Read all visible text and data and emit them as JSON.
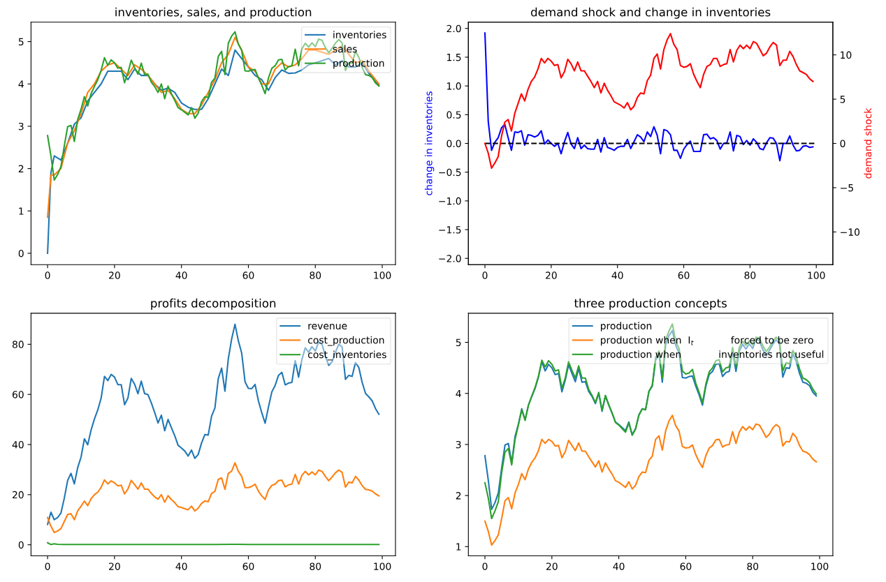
{
  "chart_data": [
    {
      "type": "line",
      "title": "inventories, sales, and production",
      "legend": "top right",
      "grid": false,
      "xlim": [
        -4.95,
        103.95
      ],
      "xticks": [
        0,
        20,
        40,
        60,
        80,
        100
      ],
      "ylim": [
        -0.27,
        5.46
      ],
      "yticks": [
        0,
        1,
        2,
        3,
        4,
        5
      ],
      "series": [
        {
          "name": "inventories",
          "color": "#1f77b4",
          "x": [
            0,
            1,
            2,
            4,
            6,
            8,
            10,
            12,
            14,
            16,
            18,
            20,
            22,
            24,
            26,
            28,
            30,
            32,
            34,
            36,
            38,
            40,
            42,
            44,
            46,
            48,
            50,
            52,
            54,
            56,
            58,
            60,
            62,
            64,
            66,
            68,
            70,
            72,
            74,
            76,
            78,
            80,
            82,
            84,
            86,
            88,
            90,
            92,
            94,
            96,
            98,
            99
          ],
          "values": [
            0,
            1.9,
            2.3,
            2.2,
            2.6,
            3.05,
            3.2,
            3.6,
            3.8,
            4.0,
            4.3,
            4.3,
            4.3,
            4.1,
            4.35,
            4.2,
            4.2,
            4.0,
            3.85,
            3.9,
            3.8,
            3.55,
            3.45,
            3.4,
            3.4,
            3.65,
            4.0,
            4.35,
            4.2,
            4.8,
            4.6,
            4.4,
            4.2,
            4.1,
            3.85,
            4.15,
            4.33,
            4.25,
            4.26,
            4.33,
            4.45,
            4.5,
            4.55,
            4.6,
            4.45,
            4.55,
            4.4,
            4.4,
            4.5,
            4.25,
            4.05,
            3.97
          ]
        },
        {
          "name": "sales",
          "color": "#ff7f0e",
          "x": [
            0,
            1,
            2,
            4,
            6,
            8,
            10,
            12,
            14,
            16,
            18,
            20,
            22,
            24,
            26,
            28,
            30,
            32,
            34,
            36,
            38,
            40,
            42,
            44,
            46,
            48,
            50,
            52,
            54,
            56,
            58,
            60,
            62,
            64,
            66,
            68,
            70,
            72,
            74,
            76,
            78,
            80,
            82,
            84,
            86,
            88,
            90,
            92,
            94,
            96,
            98,
            99
          ],
          "values": [
            0.85,
            1.85,
            1.85,
            2.0,
            2.6,
            2.9,
            3.3,
            3.8,
            4.0,
            4.3,
            4.45,
            4.5,
            4.35,
            4.2,
            4.45,
            4.35,
            4.2,
            4.0,
            3.8,
            3.85,
            3.65,
            3.4,
            3.3,
            3.3,
            3.5,
            3.8,
            4.1,
            4.5,
            4.7,
            5.1,
            4.8,
            4.4,
            4.3,
            4.0,
            4.0,
            4.35,
            4.5,
            4.4,
            4.45,
            4.6,
            4.8,
            4.8,
            4.75,
            4.7,
            4.8,
            4.9,
            4.7,
            4.5,
            4.55,
            4.3,
            4.1,
            4.0
          ]
        },
        {
          "name": "production",
          "color": "#2ca02c",
          "x": [
            0,
            1,
            2,
            3,
            4,
            5,
            6,
            7,
            8,
            9,
            10,
            11,
            12,
            13,
            14,
            15,
            16,
            17,
            18,
            19,
            20,
            21,
            22,
            23,
            24,
            25,
            26,
            27,
            28,
            29,
            30,
            31,
            32,
            33,
            34,
            35,
            36,
            37,
            38,
            39,
            40,
            41,
            42,
            43,
            44,
            45,
            46,
            47,
            48,
            49,
            50,
            51,
            52,
            53,
            54,
            55,
            56,
            57,
            58,
            59,
            60,
            61,
            62,
            63,
            64,
            65,
            66,
            67,
            68,
            69,
            70,
            71,
            72,
            73,
            74,
            75,
            76,
            77,
            78,
            79,
            80,
            81,
            82,
            83,
            84,
            85,
            86,
            87,
            88,
            89,
            90,
            91,
            92,
            93,
            94,
            95,
            96,
            97,
            98,
            99
          ],
          "values": [
            2.78,
            2.3,
            1.73,
            1.86,
            2.05,
            2.54,
            2.99,
            3.02,
            2.64,
            3.16,
            3.4,
            3.7,
            3.48,
            3.77,
            3.94,
            4.1,
            4.32,
            4.62,
            4.44,
            4.57,
            4.5,
            4.37,
            4.39,
            4.03,
            4.26,
            4.56,
            4.39,
            4.23,
            4.49,
            4.22,
            4.23,
            4.04,
            3.94,
            3.8,
            4.0,
            3.65,
            3.95,
            3.77,
            3.61,
            3.44,
            3.39,
            3.33,
            3.27,
            3.44,
            3.19,
            3.31,
            3.58,
            3.7,
            3.68,
            4.04,
            4.14,
            4.65,
            4.77,
            4.22,
            4.96,
            5.13,
            5.23,
            4.94,
            4.79,
            4.31,
            4.3,
            4.33,
            4.34,
            4.14,
            3.97,
            3.77,
            4.14,
            4.37,
            4.43,
            4.57,
            4.58,
            4.33,
            4.41,
            4.43,
            4.82,
            4.43,
            4.83,
            4.96,
            4.87,
            4.97,
            4.88,
            5.06,
            5.03,
            4.86,
            4.74,
            4.84,
            4.96,
            5.05,
            4.97,
            4.32,
            4.5,
            4.49,
            4.77,
            4.63,
            4.39,
            4.22,
            4.2,
            4.15,
            4.02,
            3.95
          ]
        }
      ]
    },
    {
      "type": "line",
      "title": "demand shock and change in inventories",
      "ylabel": "change in inventories",
      "y2label": "demand shock",
      "legend": false,
      "grid": false,
      "xlim": [
        -5,
        105
      ],
      "xticks": [
        0,
        20,
        40,
        60,
        80,
        100
      ],
      "ylim": [
        -2.11,
        2.11
      ],
      "yticks": [
        {
          "value": -2,
          "label": "−2.0"
        },
        {
          "value": -1.5,
          "label": "−1.5"
        },
        {
          "value": -1,
          "label": "−1.0"
        },
        {
          "value": -0.5,
          "label": "−0.5"
        },
        {
          "value": 0,
          "label": "0.0"
        },
        {
          "value": 0.5,
          "label": "0.5"
        },
        {
          "value": 1,
          "label": "1.0"
        },
        {
          "value": 1.5,
          "label": "1.5"
        },
        {
          "value": 2,
          "label": "2.0"
        }
      ],
      "y2lim": [
        -13.7,
        13.7
      ],
      "y2ticks": [
        {
          "value": -10,
          "label": "−10"
        },
        {
          "value": -5,
          "label": "−5"
        },
        0,
        5,
        10
      ],
      "series": [
        {
          "color": "#0000ff",
          "axis": "y",
          "x": [
            0,
            1,
            2,
            3,
            4,
            5,
            6,
            7,
            8,
            9,
            10,
            11,
            12,
            13,
            14,
            15,
            16,
            17,
            18,
            19,
            20,
            21,
            22,
            23,
            24,
            25,
            26,
            27,
            28,
            29,
            30,
            31,
            32,
            33,
            34,
            35,
            36,
            37,
            38,
            39,
            40,
            41,
            42,
            43,
            44,
            45,
            46,
            47,
            48,
            49,
            50,
            51,
            52,
            53,
            54,
            55,
            56,
            57,
            58,
            59,
            60,
            61,
            62,
            63,
            64,
            65,
            66,
            67,
            68,
            69,
            70,
            71,
            72,
            73,
            74,
            75,
            76,
            77,
            78,
            79,
            80,
            81,
            82,
            83,
            84,
            85,
            86,
            87,
            88,
            89,
            90,
            91,
            92,
            93,
            94,
            95,
            96,
            97,
            98,
            99
          ],
          "values": [
            1.92,
            0.38,
            -0.12,
            0.02,
            0.1,
            0.27,
            0.33,
            0.1,
            -0.12,
            0.2,
            0.19,
            0.22,
            -0.03,
            0.15,
            0.14,
            0.11,
            0.14,
            0.22,
            -0.01,
            0.06,
            0.0,
            -0.05,
            0.0,
            -0.18,
            0.03,
            0.19,
            -0.01,
            -0.09,
            0.1,
            -0.09,
            -0.03,
            -0.09,
            -0.1,
            -0.1,
            0.07,
            -0.15,
            0.1,
            -0.07,
            -0.09,
            -0.12,
            -0.07,
            -0.05,
            -0.05,
            0.07,
            -0.09,
            0.03,
            0.15,
            0.11,
            0.03,
            0.2,
            0.12,
            0.29,
            0.14,
            -0.18,
            0.24,
            0.22,
            0.15,
            -0.12,
            -0.12,
            -0.26,
            -0.1,
            -0.02,
            0.04,
            -0.14,
            -0.14,
            -0.14,
            0.15,
            0.16,
            0.08,
            0.1,
            0.05,
            -0.1,
            0.0,
            0.01,
            0.2,
            -0.13,
            0.14,
            0.12,
            -0.02,
            0.05,
            -0.03,
            0.08,
            0.02,
            -0.09,
            -0.11,
            0.01,
            0.1,
            0.09,
            0.0,
            -0.3,
            0.0,
            0.0,
            0.13,
            -0.03,
            -0.13,
            -0.12,
            -0.05,
            -0.04,
            -0.07,
            -0.06
          ]
        },
        {
          "color": "#ff0000",
          "axis": "y2",
          "x": [
            0,
            1,
            2,
            3,
            4,
            5,
            6,
            7,
            8,
            9,
            10,
            11,
            12,
            13,
            14,
            15,
            16,
            17,
            18,
            19,
            20,
            21,
            22,
            23,
            24,
            25,
            26,
            27,
            28,
            29,
            30,
            31,
            32,
            33,
            34,
            35,
            36,
            37,
            38,
            39,
            40,
            41,
            42,
            43,
            44,
            45,
            46,
            47,
            48,
            49,
            50,
            51,
            52,
            53,
            54,
            55,
            56,
            57,
            58,
            59,
            60,
            61,
            62,
            63,
            64,
            65,
            66,
            67,
            68,
            69,
            70,
            71,
            72,
            73,
            74,
            75,
            76,
            77,
            78,
            79,
            80,
            81,
            82,
            83,
            84,
            85,
            86,
            87,
            88,
            89,
            90,
            91,
            92,
            93,
            94,
            95,
            96,
            97,
            98,
            99
          ],
          "values": [
            0,
            -1.1,
            -2.8,
            -2.2,
            -1.5,
            0.8,
            2.4,
            2.7,
            1.4,
            3.4,
            4.5,
            5.6,
            4.8,
            6.1,
            7.0,
            7.5,
            8.4,
            9.6,
            9.1,
            9.6,
            9.3,
            8.8,
            8.9,
            7.4,
            8.1,
            9.5,
            9.0,
            8.2,
            9.2,
            8.2,
            8.2,
            7.6,
            7.0,
            6.3,
            7.0,
            5.7,
            6.8,
            6.0,
            5.4,
            4.7,
            4.5,
            4.3,
            4.0,
            4.6,
            3.8,
            4.2,
            5.2,
            5.7,
            5.6,
            7.1,
            7.7,
            9.6,
            10.1,
            8.4,
            10.6,
            11.7,
            12.4,
            11.2,
            10.6,
            8.8,
            8.6,
            8.7,
            9.0,
            7.8,
            7.0,
            6.3,
            7.8,
            8.7,
            8.9,
            9.6,
            9.6,
            8.7,
            8.9,
            9.0,
            10.6,
            9.2,
            10.5,
            11.1,
            10.7,
            11.1,
            10.7,
            11.5,
            11.3,
            10.6,
            9.9,
            10.2,
            10.9,
            11.4,
            11.1,
            8.8,
            9.4,
            9.4,
            10.4,
            9.8,
            8.9,
            8.2,
            8.0,
            7.8,
            7.3,
            7.0
          ]
        },
        {
          "color": "#000000",
          "axis": "y",
          "line_style": "dashed",
          "x": [
            0,
            100
          ],
          "values": [
            0,
            0
          ]
        }
      ]
    },
    {
      "type": "line",
      "title": "profits decomposition",
      "legend": "top right",
      "grid": false,
      "xlim": [
        -4.95,
        103.95
      ],
      "xticks": [
        0,
        20,
        40,
        60,
        80,
        100
      ],
      "ylim": [
        -4.4,
        92.4
      ],
      "yticks": [
        0,
        20,
        40,
        60,
        80
      ],
      "series": [
        {
          "name": "revenue",
          "color": "#1f77b4",
          "x": [
            0,
            1,
            2,
            3,
            4,
            5,
            6,
            7,
            8,
            9,
            10,
            11,
            12,
            13,
            14,
            15,
            16,
            17,
            18,
            19,
            20,
            21,
            22,
            23,
            24,
            25,
            26,
            27,
            28,
            29,
            30,
            31,
            32,
            33,
            34,
            35,
            36,
            37,
            38,
            39,
            40,
            41,
            42,
            43,
            44,
            45,
            46,
            47,
            48,
            49,
            50,
            51,
            52,
            53,
            54,
            55,
            56,
            57,
            58,
            59,
            60,
            61,
            62,
            63,
            64,
            65,
            66,
            67,
            68,
            69,
            70,
            71,
            72,
            73,
            74,
            75,
            76,
            77,
            78,
            79,
            80,
            81,
            82,
            83,
            84,
            85,
            86,
            87,
            88,
            89,
            90,
            91,
            92,
            93,
            94,
            95,
            96,
            97,
            98,
            99
          ],
          "values": [
            8.1,
            13,
            10,
            10.9,
            12.7,
            18.6,
            25.7,
            28.5,
            24.3,
            30.8,
            35,
            42.3,
            39.9,
            45.8,
            50.2,
            53.8,
            58.5,
            67.2,
            65.5,
            68,
            66.9,
            63.9,
            63.9,
            55.9,
            58.5,
            66.4,
            64.1,
            60.3,
            65.3,
            60.3,
            59.9,
            56.6,
            52.8,
            48.6,
            51.7,
            45.5,
            50,
            46.7,
            43.5,
            39.7,
            38.6,
            37.4,
            35.4,
            37.8,
            34.5,
            36,
            40.6,
            44,
            43.8,
            51.3,
            54.6,
            66.3,
            70.5,
            61.3,
            74.2,
            82.1,
            88,
            81.4,
            76.5,
            65,
            62.4,
            62.3,
            64,
            57.4,
            52.7,
            48.5,
            55,
            61,
            63.6,
            67.6,
            68.8,
            63.8,
            64.5,
            64.8,
            73.5,
            66.9,
            74,
            78.6,
            76.8,
            79.1,
            77.3,
            81,
            80,
            75.4,
            71.6,
            73,
            76.8,
            80,
            79,
            66,
            67.6,
            67.2,
            72.7,
            70.7,
            64.8,
            60.4,
            59,
            57.4,
            54.3,
            52.1
          ]
        },
        {
          "name": "cost_production",
          "color": "#ff7f0e",
          "x": [
            0,
            1,
            2,
            3,
            4,
            5,
            6,
            7,
            8,
            9,
            10,
            11,
            12,
            13,
            14,
            15,
            16,
            17,
            18,
            19,
            20,
            21,
            22,
            23,
            24,
            25,
            26,
            27,
            28,
            29,
            30,
            31,
            32,
            33,
            34,
            35,
            36,
            37,
            38,
            39,
            40,
            41,
            42,
            43,
            44,
            45,
            46,
            47,
            48,
            49,
            50,
            51,
            52,
            53,
            54,
            55,
            56,
            57,
            58,
            59,
            60,
            61,
            62,
            63,
            64,
            65,
            66,
            67,
            68,
            69,
            70,
            71,
            72,
            73,
            74,
            75,
            76,
            77,
            78,
            79,
            80,
            81,
            82,
            83,
            84,
            85,
            86,
            87,
            88,
            89,
            90,
            91,
            92,
            93,
            94,
            95,
            96,
            97,
            98,
            99
          ],
          "values": [
            10.9,
            7.4,
            4.9,
            5.5,
            6.5,
            9.3,
            12.1,
            12.4,
            10,
            13.5,
            15.4,
            17.4,
            15.6,
            18.4,
            20,
            21,
            22.9,
            25.9,
            24.3,
            25.5,
            24.7,
            23.5,
            23.8,
            20.3,
            22.2,
            25.7,
            24,
            22.2,
            24.7,
            22.2,
            22.2,
            20.5,
            19.1,
            18.2,
            20,
            17,
            19.6,
            18,
            16.8,
            15.2,
            14.9,
            14.4,
            14,
            15.4,
            13.5,
            14.6,
            16.5,
            17.5,
            17.2,
            20.5,
            21.3,
            26.1,
            26.7,
            22.1,
            28.5,
            29.4,
            32.7,
            29.3,
            27.3,
            22.8,
            22.8,
            23.3,
            24.2,
            21.4,
            19.5,
            18.1,
            21.9,
            23.7,
            24.2,
            25.6,
            25.8,
            23.1,
            23.9,
            24.2,
            28.1,
            24.2,
            27.7,
            29.3,
            27.9,
            29.1,
            27.9,
            29.8,
            29.3,
            27.3,
            25.6,
            27,
            28.7,
            29.8,
            28.9,
            23,
            25,
            24.7,
            27.3,
            25.8,
            23.6,
            22.1,
            21.9,
            21.4,
            20.3,
            19.5
          ]
        },
        {
          "name": "cost_inventories",
          "color": "#2ca02c",
          "x": [
            0,
            1,
            2,
            3,
            5,
            10,
            20,
            30,
            40,
            50,
            55,
            56,
            57,
            60,
            70,
            80,
            90,
            99
          ],
          "values": [
            0.8,
            0.1,
            0.4,
            0.2,
            0.1,
            0.1,
            0.1,
            0.1,
            0.1,
            0.1,
            0.2,
            0.2,
            0.2,
            0.1,
            0.1,
            0.1,
            0.1,
            0.1
          ]
        }
      ]
    },
    {
      "type": "line",
      "title": "three production concepts",
      "legend": "top right",
      "grid": false,
      "xlim": [
        -4.95,
        103.95
      ],
      "xticks": [
        0,
        20,
        40,
        60,
        80,
        100
      ],
      "ylim": [
        0.82,
        5.57
      ],
      "yticks": [
        1,
        2,
        3,
        4,
        5
      ],
      "series": [
        {
          "name": "production",
          "color": "#1f77b4",
          "x": [
            0,
            1,
            2,
            3,
            4,
            5,
            6,
            7,
            8,
            9,
            10,
            11,
            12,
            13,
            14,
            15,
            16,
            17,
            18,
            19,
            20,
            21,
            22,
            23,
            24,
            25,
            26,
            27,
            28,
            29,
            30,
            31,
            32,
            33,
            34,
            35,
            36,
            37,
            38,
            39,
            40,
            41,
            42,
            43,
            44,
            45,
            46,
            47,
            48,
            49,
            50,
            51,
            52,
            53,
            54,
            55,
            56,
            57,
            58,
            59,
            60,
            61,
            62,
            63,
            64,
            65,
            66,
            67,
            68,
            69,
            70,
            71,
            72,
            73,
            74,
            75,
            76,
            77,
            78,
            79,
            80,
            81,
            82,
            83,
            84,
            85,
            86,
            87,
            88,
            89,
            90,
            91,
            92,
            93,
            94,
            95,
            96,
            97,
            98,
            99
          ],
          "values": [
            2.78,
            2.3,
            1.73,
            1.86,
            2.05,
            2.54,
            2.99,
            3.02,
            2.64,
            3.16,
            3.4,
            3.7,
            3.48,
            3.77,
            3.94,
            4.1,
            4.32,
            4.62,
            4.44,
            4.57,
            4.5,
            4.37,
            4.39,
            4.03,
            4.26,
            4.56,
            4.39,
            4.23,
            4.49,
            4.22,
            4.23,
            4.04,
            3.94,
            3.8,
            4.0,
            3.65,
            3.95,
            3.77,
            3.61,
            3.44,
            3.39,
            3.33,
            3.27,
            3.44,
            3.19,
            3.31,
            3.58,
            3.7,
            3.68,
            4.04,
            4.14,
            4.65,
            4.77,
            4.22,
            4.96,
            5.13,
            5.23,
            4.94,
            4.79,
            4.31,
            4.3,
            4.33,
            4.34,
            4.14,
            3.97,
            3.77,
            4.14,
            4.37,
            4.43,
            4.57,
            4.58,
            4.33,
            4.41,
            4.43,
            4.82,
            4.43,
            4.83,
            4.96,
            4.87,
            4.97,
            4.88,
            5.06,
            5.03,
            4.86,
            4.74,
            4.84,
            4.96,
            5.05,
            4.97,
            4.32,
            4.5,
            4.49,
            4.77,
            4.63,
            4.39,
            4.22,
            4.2,
            4.15,
            4.02,
            3.95
          ]
        },
        {
          "name": "production when  I$_{t}$            forced to be zero",
          "color": "#ff7f0e",
          "x": [
            0,
            1,
            2,
            3,
            4,
            5,
            6,
            7,
            8,
            9,
            10,
            11,
            12,
            13,
            14,
            15,
            16,
            17,
            18,
            19,
            20,
            21,
            22,
            23,
            24,
            25,
            26,
            27,
            28,
            29,
            30,
            31,
            32,
            33,
            34,
            35,
            36,
            37,
            38,
            39,
            40,
            41,
            42,
            43,
            44,
            45,
            46,
            47,
            48,
            49,
            50,
            51,
            52,
            53,
            54,
            55,
            56,
            57,
            58,
            59,
            60,
            61,
            62,
            63,
            64,
            65,
            66,
            67,
            68,
            69,
            70,
            71,
            72,
            73,
            74,
            75,
            76,
            77,
            78,
            79,
            80,
            81,
            82,
            83,
            84,
            85,
            86,
            87,
            88,
            89,
            90,
            91,
            92,
            93,
            94,
            95,
            96,
            97,
            98,
            99
          ],
          "values": [
            1.5,
            1.3,
            1.03,
            1.12,
            1.23,
            1.55,
            1.9,
            1.96,
            1.74,
            2.05,
            2.22,
            2.43,
            2.31,
            2.52,
            2.65,
            2.74,
            2.88,
            3.1,
            3.02,
            3.1,
            3.06,
            2.97,
            2.98,
            2.74,
            2.86,
            3.08,
            2.98,
            2.88,
            3.03,
            2.87,
            2.87,
            2.76,
            2.66,
            2.56,
            2.68,
            2.46,
            2.64,
            2.52,
            2.42,
            2.29,
            2.26,
            2.21,
            2.16,
            2.27,
            2.13,
            2.2,
            2.37,
            2.46,
            2.45,
            2.69,
            2.77,
            3.1,
            3.17,
            2.89,
            3.27,
            3.46,
            3.57,
            3.37,
            3.26,
            2.96,
            2.93,
            2.94,
            2.99,
            2.8,
            2.66,
            2.55,
            2.78,
            2.93,
            2.98,
            3.09,
            3.1,
            2.95,
            2.99,
            3.0,
            3.25,
            3.02,
            3.24,
            3.35,
            3.28,
            3.35,
            3.29,
            3.4,
            3.38,
            3.27,
            3.14,
            3.2,
            3.32,
            3.39,
            3.34,
            2.97,
            3.06,
            3.05,
            3.22,
            3.14,
            2.98,
            2.87,
            2.85,
            2.8,
            2.71,
            2.66
          ]
        },
        {
          "name": "production when            inventories not useful",
          "color": "#2ca02c",
          "x": [
            0,
            1,
            2,
            3,
            4,
            5,
            6,
            7,
            8,
            9,
            10,
            11,
            12,
            13,
            14,
            15,
            16,
            17,
            18,
            19,
            20,
            21,
            22,
            23,
            24,
            25,
            26,
            27,
            28,
            29,
            30,
            31,
            32,
            33,
            34,
            35,
            36,
            37,
            38,
            39,
            40,
            41,
            42,
            43,
            44,
            45,
            46,
            47,
            48,
            49,
            50,
            51,
            52,
            53,
            54,
            55,
            56,
            57,
            58,
            59,
            60,
            61,
            62,
            63,
            64,
            65,
            66,
            67,
            68,
            69,
            70,
            71,
            72,
            73,
            74,
            75,
            76,
            77,
            78,
            79,
            80,
            81,
            82,
            83,
            84,
            85,
            86,
            87,
            88,
            89,
            90,
            91,
            92,
            93,
            94,
            95,
            96,
            97,
            98,
            99
          ],
          "values": [
            2.25,
            1.95,
            1.55,
            1.7,
            1.88,
            2.45,
            2.85,
            2.92,
            2.6,
            3.1,
            3.38,
            3.68,
            3.47,
            3.77,
            3.95,
            4.12,
            4.34,
            4.65,
            4.52,
            4.64,
            4.57,
            4.44,
            4.46,
            4.1,
            4.3,
            4.62,
            4.45,
            4.3,
            4.54,
            4.3,
            4.3,
            4.08,
            3.96,
            3.82,
            4.02,
            3.67,
            3.96,
            3.78,
            3.62,
            3.43,
            3.38,
            3.31,
            3.24,
            3.42,
            3.18,
            3.3,
            3.57,
            3.7,
            3.68,
            4.04,
            4.16,
            4.7,
            4.83,
            4.3,
            5.05,
            5.22,
            5.36,
            5.02,
            4.88,
            4.44,
            4.38,
            4.4,
            4.47,
            4.2,
            4.02,
            3.82,
            4.18,
            4.42,
            4.5,
            4.64,
            4.66,
            4.42,
            4.5,
            4.52,
            4.9,
            4.52,
            4.9,
            5.02,
            4.94,
            5.03,
            4.95,
            5.1,
            5.08,
            4.94,
            4.82,
            4.9,
            5.02,
            5.1,
            5.04,
            4.44,
            4.6,
            4.58,
            4.84,
            4.72,
            4.48,
            4.3,
            4.27,
            4.21,
            4.08,
            3.99
          ]
        }
      ]
    }
  ]
}
